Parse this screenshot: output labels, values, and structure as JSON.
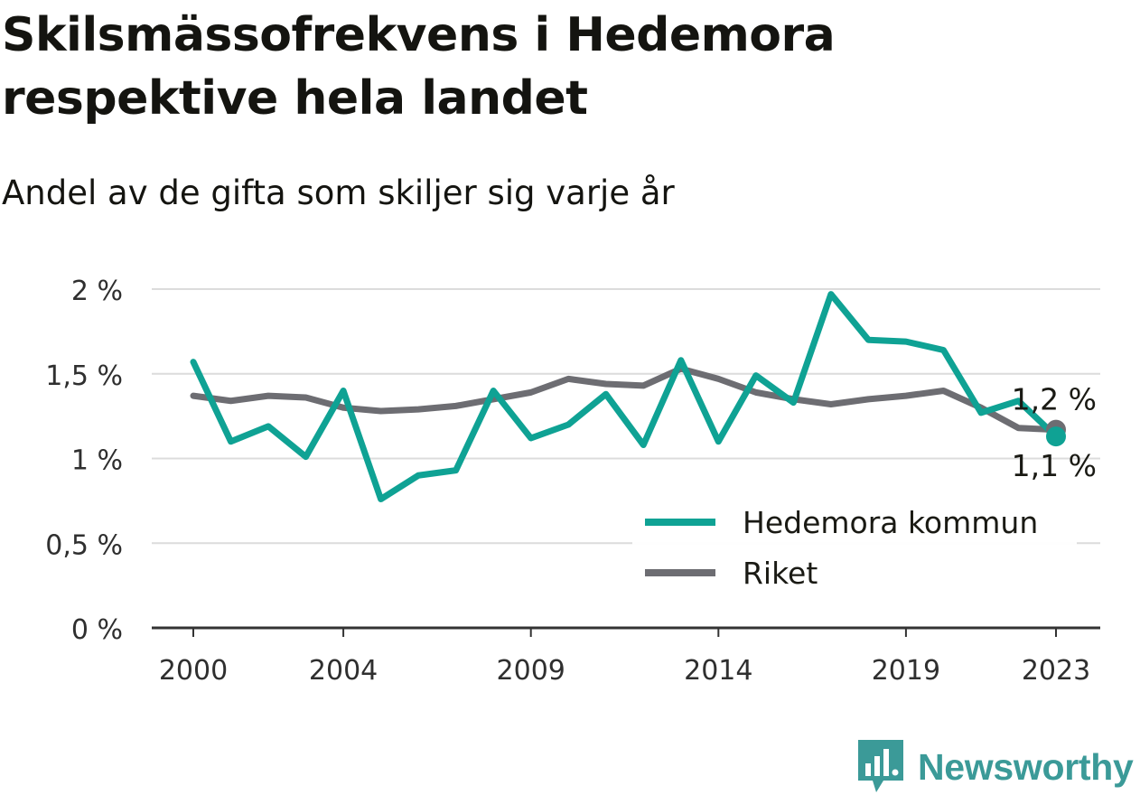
{
  "title": "Skilsmässofrekvens i Hedemora respektive hela landet",
  "subtitle": "Andel av de gifta som skiljer sig varje år",
  "brand": {
    "name": "Newsworthy",
    "icon": "newsworthy-logo-icon",
    "color": "#3b9a98"
  },
  "chart_data": {
    "type": "line",
    "x": [
      2000,
      2001,
      2002,
      2003,
      2004,
      2005,
      2006,
      2007,
      2008,
      2009,
      2010,
      2011,
      2012,
      2013,
      2014,
      2015,
      2016,
      2017,
      2018,
      2019,
      2020,
      2021,
      2022,
      2023
    ],
    "x_ticks": [
      2000,
      2004,
      2009,
      2014,
      2019,
      2023
    ],
    "x_tick_labels": [
      "2000",
      "2004",
      "2009",
      "2014",
      "2019",
      "2023"
    ],
    "y_ticks": [
      0,
      0.5,
      1,
      1.5,
      2
    ],
    "y_tick_labels": [
      "0 %",
      "0,5 %",
      "1 %",
      "1,5 %",
      "2 %"
    ],
    "ylim": [
      0,
      2
    ],
    "grid": true,
    "legend_position": "bottom-right",
    "series": [
      {
        "name": "Hedemora kommun",
        "color": "#0fa294",
        "values": [
          1.57,
          1.1,
          1.19,
          1.01,
          1.4,
          0.76,
          0.9,
          0.93,
          1.4,
          1.12,
          1.2,
          1.38,
          1.08,
          1.58,
          1.1,
          1.49,
          1.33,
          1.97,
          1.7,
          1.69,
          1.64,
          1.27,
          1.34,
          1.13
        ],
        "end_label": "1,1 %"
      },
      {
        "name": "Riket",
        "color": "#6d6d72",
        "values": [
          1.37,
          1.34,
          1.37,
          1.36,
          1.3,
          1.28,
          1.29,
          1.31,
          1.35,
          1.39,
          1.47,
          1.44,
          1.43,
          1.53,
          1.47,
          1.39,
          1.35,
          1.32,
          1.35,
          1.37,
          1.4,
          1.3,
          1.18,
          1.17
        ],
        "end_label": "1,2 %"
      }
    ]
  }
}
